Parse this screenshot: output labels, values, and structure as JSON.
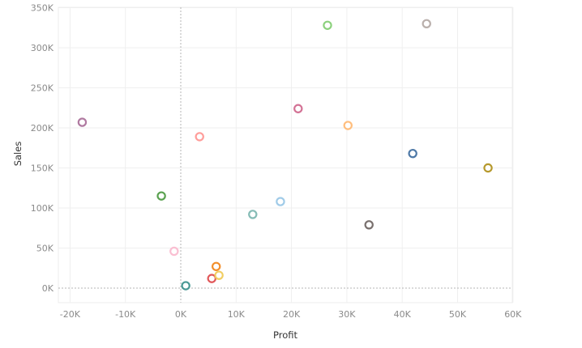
{
  "chart_data": {
    "type": "scatter",
    "title": "",
    "xlabel": "Profit",
    "ylabel": "Sales",
    "xlim": [
      -22000,
      60000
    ],
    "ylim": [
      -18000,
      350000
    ],
    "grid": true,
    "legend": "none",
    "x_ticks": [
      -20000,
      -10000,
      0,
      10000,
      20000,
      30000,
      40000,
      50000,
      60000
    ],
    "x_tick_labels": [
      "-20K",
      "-10K",
      "0K",
      "10K",
      "20K",
      "30K",
      "40K",
      "50K",
      "60K"
    ],
    "y_ticks": [
      0,
      50000,
      100000,
      150000,
      200000,
      250000,
      300000,
      350000
    ],
    "y_tick_labels": [
      "0K",
      "50K",
      "100K",
      "150K",
      "200K",
      "250K",
      "300K",
      "350K"
    ],
    "marker": "open-circle",
    "points": [
      {
        "x": -17800,
        "y": 207000,
        "color": "#b07aa1"
      },
      {
        "x": -3500,
        "y": 115000,
        "color": "#59a14f"
      },
      {
        "x": -1200,
        "y": 46000,
        "color": "#fabfd2"
      },
      {
        "x": 900,
        "y": 3000,
        "color": "#499894"
      },
      {
        "x": 3400,
        "y": 189000,
        "color": "#ff9d9a"
      },
      {
        "x": 5600,
        "y": 12000,
        "color": "#e15759"
      },
      {
        "x": 6400,
        "y": 27000,
        "color": "#f28e2b"
      },
      {
        "x": 6900,
        "y": 16000,
        "color": "#f1ce63"
      },
      {
        "x": 13000,
        "y": 92000,
        "color": "#86bcb6"
      },
      {
        "x": 18000,
        "y": 108000,
        "color": "#a0cbe8"
      },
      {
        "x": 21200,
        "y": 224000,
        "color": "#d37295"
      },
      {
        "x": 26500,
        "y": 328000,
        "color": "#8cd17d"
      },
      {
        "x": 30200,
        "y": 203000,
        "color": "#ffbe7d"
      },
      {
        "x": 34000,
        "y": 79000,
        "color": "#79706e"
      },
      {
        "x": 41900,
        "y": 168000,
        "color": "#4e79a7"
      },
      {
        "x": 44400,
        "y": 330000,
        "color": "#bab0ac"
      },
      {
        "x": 55500,
        "y": 150000,
        "color": "#b6992d"
      }
    ]
  }
}
